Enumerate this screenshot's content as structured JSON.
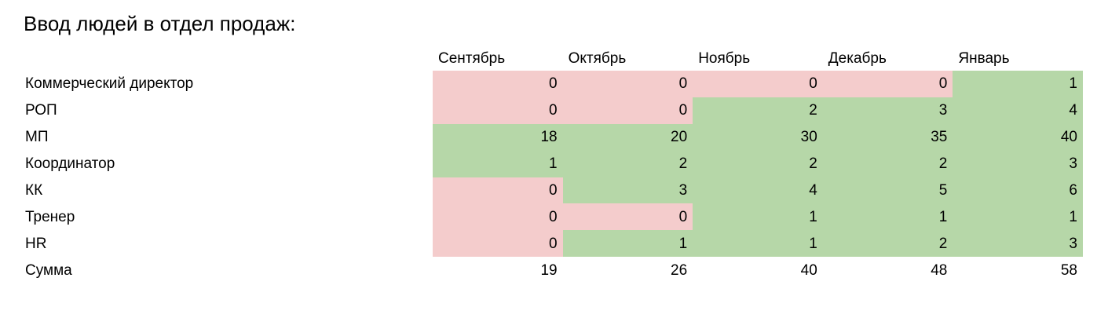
{
  "title": "Ввод людей в отдел продаж:",
  "colors": {
    "background": "#ffffff",
    "text": "#000000",
    "negative_fill": "#f4cccc",
    "positive_fill": "#b6d7a8"
  },
  "table": {
    "months": [
      "Сентябрь",
      "Октябрь",
      "Ноябрь",
      "Декабрь",
      "Январь"
    ],
    "rows": [
      {
        "label": "Коммерческий директор",
        "values": [
          0,
          0,
          0,
          0,
          1
        ],
        "fills": [
          "red",
          "red",
          "red",
          "red",
          "green"
        ]
      },
      {
        "label": "РОП",
        "values": [
          0,
          0,
          2,
          3,
          4
        ],
        "fills": [
          "red",
          "red",
          "green",
          "green",
          "green"
        ]
      },
      {
        "label": "МП",
        "values": [
          18,
          20,
          30,
          35,
          40
        ],
        "fills": [
          "green",
          "green",
          "green",
          "green",
          "green"
        ]
      },
      {
        "label": "Координатор",
        "values": [
          1,
          2,
          2,
          2,
          3
        ],
        "fills": [
          "green",
          "green",
          "green",
          "green",
          "green"
        ]
      },
      {
        "label": "КК",
        "values": [
          0,
          3,
          4,
          5,
          6
        ],
        "fills": [
          "red",
          "green",
          "green",
          "green",
          "green"
        ]
      },
      {
        "label": "Тренер",
        "values": [
          0,
          0,
          1,
          1,
          1
        ],
        "fills": [
          "red",
          "red",
          "green",
          "green",
          "green"
        ]
      },
      {
        "label": "HR",
        "values": [
          0,
          1,
          1,
          2,
          3
        ],
        "fills": [
          "red",
          "green",
          "green",
          "green",
          "green"
        ]
      },
      {
        "label": "Сумма",
        "values": [
          19,
          26,
          40,
          48,
          58
        ],
        "fills": [
          "none",
          "none",
          "none",
          "none",
          "none"
        ]
      }
    ]
  },
  "chart_data": {
    "type": "table",
    "title": "Ввод людей в отдел продаж:",
    "categories": [
      "Сентябрь",
      "Октябрь",
      "Ноябрь",
      "Декабрь",
      "Январь"
    ],
    "series": [
      {
        "name": "Коммерческий директор",
        "values": [
          0,
          0,
          0,
          0,
          1
        ]
      },
      {
        "name": "РОП",
        "values": [
          0,
          0,
          2,
          3,
          4
        ]
      },
      {
        "name": "МП",
        "values": [
          18,
          20,
          30,
          35,
          40
        ]
      },
      {
        "name": "Координатор",
        "values": [
          1,
          2,
          2,
          2,
          3
        ]
      },
      {
        "name": "КК",
        "values": [
          0,
          3,
          4,
          5,
          6
        ]
      },
      {
        "name": "Тренер",
        "values": [
          0,
          0,
          1,
          1,
          1
        ]
      },
      {
        "name": "HR",
        "values": [
          0,
          1,
          1,
          2,
          3
        ]
      },
      {
        "name": "Сумма",
        "values": [
          19,
          26,
          40,
          48,
          58
        ]
      }
    ],
    "legend_position": "none",
    "grid": false
  }
}
